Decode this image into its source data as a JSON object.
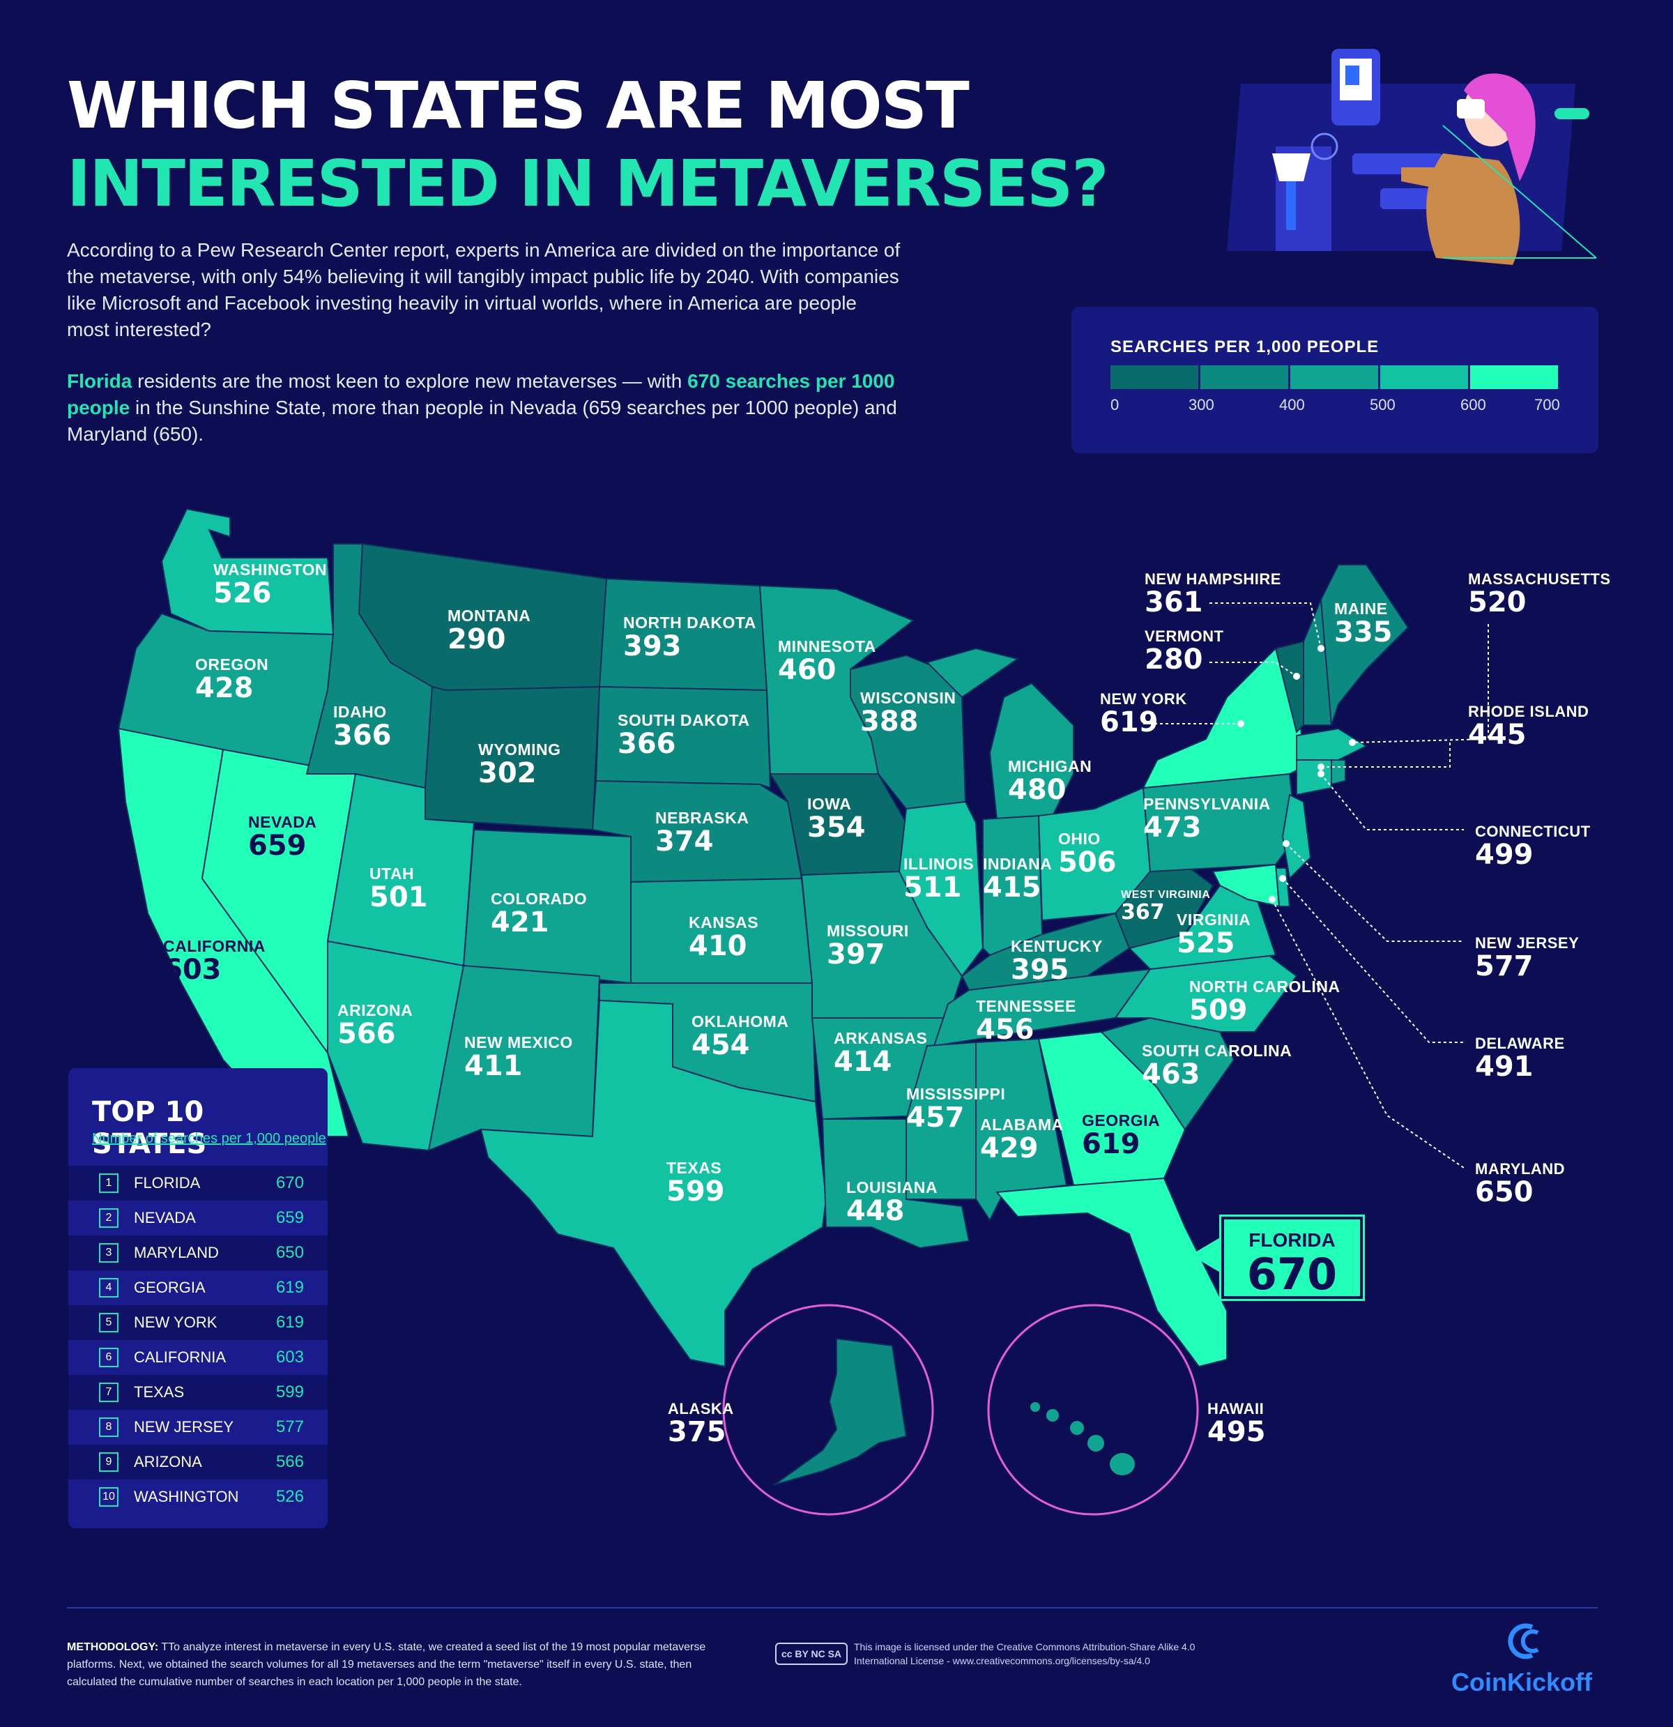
{
  "title": {
    "line1": "WHICH STATES ARE MOST",
    "line2": "INTERESTED IN METAVERSES?"
  },
  "intro": {
    "p1": "According to a Pew Research Center report, experts in America are divided on the importance of the metaverse, with only 54% believing it will tangibly impact public life by 2040. With companies like Microsoft and Facebook investing heavily in virtual worlds, where in America are people most interested?",
    "p2_a": "Florida",
    "p2_b": " residents are the most keen to explore new metaverses — with ",
    "p2_c": "670 searches per 1000 people",
    "p2_d": " in the Sunshine State, more than people in Nevada (659 searches per 1000 people) and Maryland (650)."
  },
  "legend": {
    "title": "SEARCHES PER 1,000 PEOPLE",
    "ticks": [
      "0",
      "300",
      "400",
      "500",
      "600",
      "700"
    ],
    "colors": [
      "#0a6b6b",
      "#0c8a80",
      "#0fa590",
      "#12c3a3",
      "#21ffb9"
    ]
  },
  "states": {
    "washington": {
      "name": "WASHINGTON",
      "value": "526"
    },
    "oregon": {
      "name": "OREGON",
      "value": "428"
    },
    "california": {
      "name": "CALIFORNIA",
      "value": "603"
    },
    "nevada": {
      "name": "NEVADA",
      "value": "659"
    },
    "idaho": {
      "name": "IDAHO",
      "value": "366"
    },
    "montana": {
      "name": "MONTANA",
      "value": "290"
    },
    "wyoming": {
      "name": "WYOMING",
      "value": "302"
    },
    "utah": {
      "name": "UTAH",
      "value": "501"
    },
    "arizona": {
      "name": "ARIZONA",
      "value": "566"
    },
    "colorado": {
      "name": "COLORADO",
      "value": "421"
    },
    "new_mexico": {
      "name": "NEW MEXICO",
      "value": "411"
    },
    "north_dakota": {
      "name": "NORTH DAKOTA",
      "value": "393"
    },
    "south_dakota": {
      "name": "SOUTH DAKOTA",
      "value": "366"
    },
    "nebraska": {
      "name": "NEBRASKA",
      "value": "374"
    },
    "kansas": {
      "name": "KANSAS",
      "value": "410"
    },
    "oklahoma": {
      "name": "OKLAHOMA",
      "value": "454"
    },
    "texas": {
      "name": "TEXAS",
      "value": "599"
    },
    "minnesota": {
      "name": "MINNESOTA",
      "value": "460"
    },
    "iowa": {
      "name": "IOWA",
      "value": "354"
    },
    "missouri": {
      "name": "MISSOURI",
      "value": "397"
    },
    "arkansas": {
      "name": "ARKANSAS",
      "value": "414"
    },
    "louisiana": {
      "name": "LOUISIANA",
      "value": "448"
    },
    "wisconsin": {
      "name": "WISCONSIN",
      "value": "388"
    },
    "illinois": {
      "name": "ILLINOIS",
      "value": "511"
    },
    "michigan": {
      "name": "MICHIGAN",
      "value": "480"
    },
    "indiana": {
      "name": "INDIANA",
      "value": "415"
    },
    "ohio": {
      "name": "OHIO",
      "value": "506"
    },
    "kentucky": {
      "name": "KENTUCKY",
      "value": "395"
    },
    "tennessee": {
      "name": "TENNESSEE",
      "value": "456"
    },
    "mississippi": {
      "name": "MISSISSIPPI",
      "value": "457"
    },
    "alabama": {
      "name": "ALABAMA",
      "value": "429"
    },
    "georgia": {
      "name": "GEORGIA",
      "value": "619"
    },
    "florida": {
      "name": "FLORIDA",
      "value": "670"
    },
    "south_carolina": {
      "name": "SOUTH CAROLINA",
      "value": "463"
    },
    "north_carolina": {
      "name": "NORTH CAROLINA",
      "value": "509"
    },
    "virginia": {
      "name": "VIRGINIA",
      "value": "525"
    },
    "west_virginia": {
      "name": "WEST VIRGINIA",
      "value": "367"
    },
    "pennsylvania": {
      "name": "PENNSYLVANIA",
      "value": "473"
    },
    "new_york": {
      "name": "NEW YORK",
      "value": "619"
    },
    "vermont": {
      "name": "VERMONT",
      "value": "280"
    },
    "new_hampshire": {
      "name": "NEW HAMPSHIRE",
      "value": "361"
    },
    "maine": {
      "name": "MAINE",
      "value": "335"
    },
    "massachusetts": {
      "name": "MASSACHUSETTS",
      "value": "520"
    },
    "rhode_island": {
      "name": "RHODE ISLAND",
      "value": "445"
    },
    "connecticut": {
      "name": "CONNECTICUT",
      "value": "499"
    },
    "new_jersey": {
      "name": "NEW JERSEY",
      "value": "577"
    },
    "delaware": {
      "name": "DELAWARE",
      "value": "491"
    },
    "maryland": {
      "name": "MARYLAND",
      "value": "650"
    },
    "alaska": {
      "name": "ALASKA",
      "value": "375"
    },
    "hawaii": {
      "name": "HAWAII",
      "value": "495"
    }
  },
  "top10": {
    "title": "TOP 10 STATES",
    "subtitle": "Number of searches per 1,000 people",
    "rows": [
      {
        "rank": "1",
        "state": "FLORIDA",
        "value": "670"
      },
      {
        "rank": "2",
        "state": "NEVADA",
        "value": "659"
      },
      {
        "rank": "3",
        "state": "MARYLAND",
        "value": "650"
      },
      {
        "rank": "4",
        "state": "GEORGIA",
        "value": "619"
      },
      {
        "rank": "5",
        "state": "NEW YORK",
        "value": "619"
      },
      {
        "rank": "6",
        "state": "CALIFORNIA",
        "value": "603"
      },
      {
        "rank": "7",
        "state": "TEXAS",
        "value": "599"
      },
      {
        "rank": "8",
        "state": "NEW JERSEY",
        "value": "577"
      },
      {
        "rank": "9",
        "state": "ARIZONA",
        "value": "566"
      },
      {
        "rank": "10",
        "state": "WASHINGTON",
        "value": "526"
      }
    ]
  },
  "footer": {
    "method_label": "METHODOLOGY:",
    "method_text": " TTo analyze interest in metaverse in every U.S. state, we created a seed list of the 19 most popular metaverse platforms. Next, we obtained the search volumes for all 19 metaverses and the term \"metaverse\" itself in every U.S. state, then calculated the cumulative number of searches in each location per 1,000 people in the state.",
    "cc_badge": "cc BY NC SA",
    "license": "This image is licensed under the Creative Commons Attribution-Share Alike 4.0 International License - www.creativecommons.org/licenses/by-sa/4.0",
    "brand": "CoinKickoff"
  }
}
